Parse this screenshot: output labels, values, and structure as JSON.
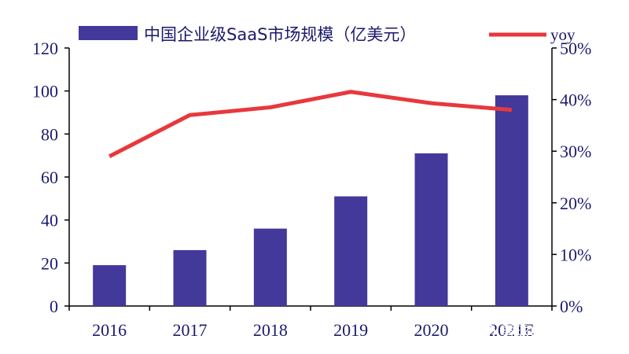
{
  "chart_data": {
    "type": "bar+line",
    "categories": [
      "2016",
      "2017",
      "2018",
      "2019",
      "2020",
      "2021E"
    ],
    "series": [
      {
        "name": "中国企业级SaaS市场规模（亿美元）",
        "type": "bar",
        "axis": "left",
        "values": [
          19,
          26,
          36,
          51,
          71,
          98
        ],
        "color": "#43399a"
      },
      {
        "name": "yoy",
        "type": "line",
        "axis": "right",
        "values": [
          29,
          37,
          38.5,
          41.5,
          39.3,
          38
        ],
        "color": "#e8383d"
      }
    ],
    "y_left": {
      "min": 0,
      "max": 120,
      "ticks": [
        0,
        20,
        40,
        60,
        80,
        100,
        120
      ]
    },
    "y_right": {
      "min": 0,
      "max": 50,
      "ticks": [
        "0%",
        "10%",
        "20%",
        "30%",
        "40%",
        "50%"
      ]
    },
    "legend_position": "top",
    "grid": false
  },
  "watermark": "雪球：评研阁",
  "colors": {
    "axis": "#000000",
    "text": "#1a1a6e"
  }
}
